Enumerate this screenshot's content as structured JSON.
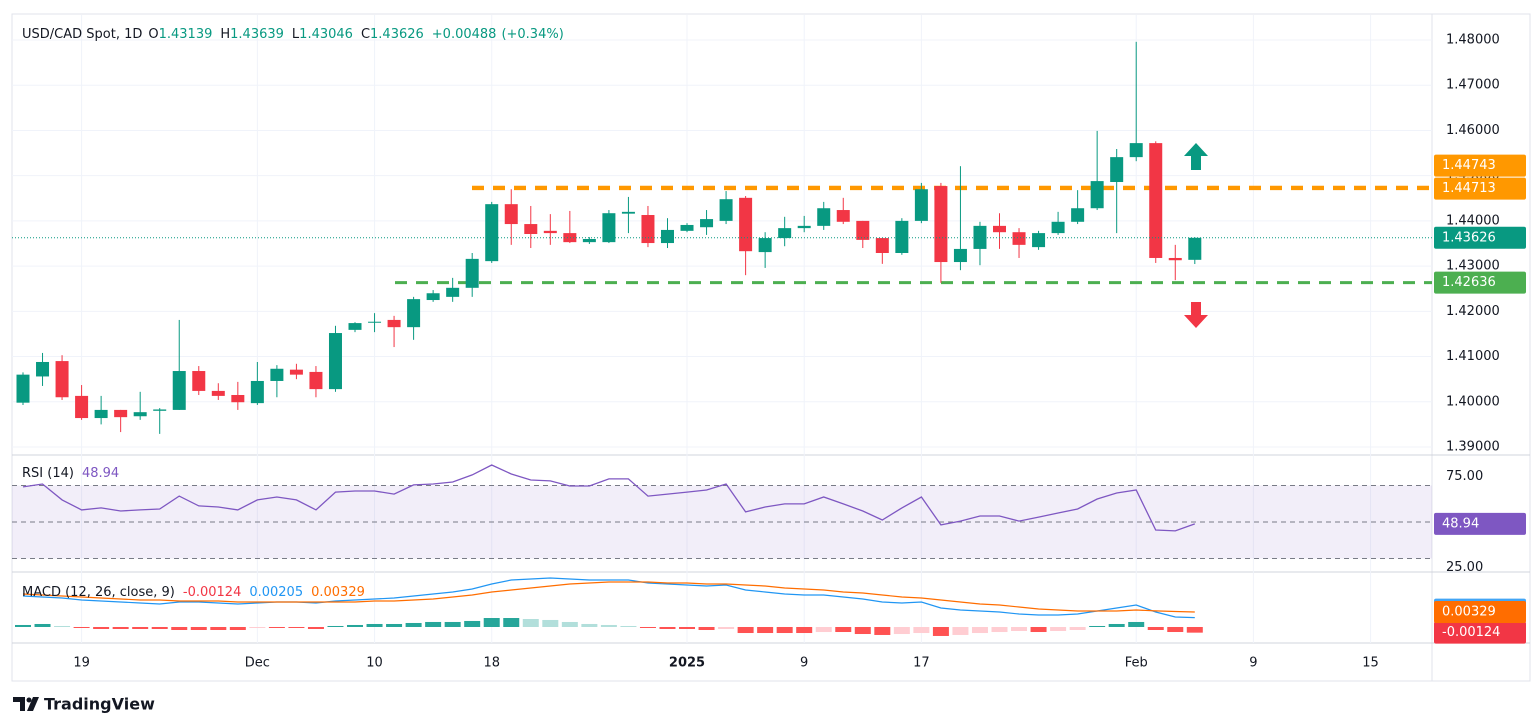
{
  "chart_data": {
    "type": "candlestick",
    "title": "USD/CAD Spot, 1D",
    "ohlc_letters": [
      "O",
      "H",
      "L",
      "C"
    ],
    "change": {
      "value": 0.00488,
      "label": "+0.00488"
    },
    "change_pct": {
      "value": 0.34,
      "label": "(+0.34%)"
    },
    "up_color": "#089981",
    "down_color": "#f23645",
    "ohlc": [
      [
        1.3998,
        1.4065,
        1.3993,
        1.406
      ],
      [
        1.4056,
        1.4108,
        1.4035,
        1.4088
      ],
      [
        1.409,
        1.4103,
        1.4004,
        1.401
      ],
      [
        1.4013,
        1.4037,
        1.396,
        1.3964
      ],
      [
        1.3964,
        1.4013,
        1.395,
        1.3982
      ],
      [
        1.3982,
        1.3982,
        1.3933,
        1.3966
      ],
      [
        1.3968,
        1.4022,
        1.396,
        1.3977
      ],
      [
        1.398,
        1.3986,
        1.3929,
        1.3983
      ],
      [
        1.3982,
        1.4181,
        1.3982,
        1.4068
      ],
      [
        1.4068,
        1.4079,
        1.4015,
        1.4024
      ],
      [
        1.4024,
        1.4041,
        1.4004,
        1.4013
      ],
      [
        1.4015,
        1.4044,
        1.3982,
        1.3999
      ],
      [
        1.3997,
        1.4088,
        1.3993,
        1.4046
      ],
      [
        1.4046,
        1.4081,
        1.401,
        1.4073
      ],
      [
        1.4071,
        1.4084,
        1.405,
        1.406
      ],
      [
        1.4066,
        1.4079,
        1.401,
        1.4028
      ],
      [
        1.4028,
        1.4168,
        1.4022,
        1.4152
      ],
      [
        1.4159,
        1.4176,
        1.4154,
        1.4174
      ],
      [
        1.4175,
        1.4196,
        1.4154,
        1.4177
      ],
      [
        1.4181,
        1.419,
        1.4121,
        1.4165
      ],
      [
        1.4165,
        1.4232,
        1.4137,
        1.4227
      ],
      [
        1.4225,
        1.4247,
        1.4221,
        1.424
      ],
      [
        1.4232,
        1.4274,
        1.4221,
        1.4252
      ],
      [
        1.4252,
        1.4329,
        1.4232,
        1.4316
      ],
      [
        1.4311,
        1.4442,
        1.4307,
        1.4437
      ],
      [
        1.4437,
        1.447,
        1.4347,
        1.4393
      ],
      [
        1.4393,
        1.4433,
        1.434,
        1.4371
      ],
      [
        1.4378,
        1.4415,
        1.4347,
        1.4373
      ],
      [
        1.4373,
        1.4422,
        1.4351,
        1.4353
      ],
      [
        1.4353,
        1.4364,
        1.4349,
        1.436
      ],
      [
        1.4353,
        1.4424,
        1.4351,
        1.4417
      ],
      [
        1.4416,
        1.4453,
        1.4373,
        1.442
      ],
      [
        1.4413,
        1.4433,
        1.4342,
        1.4351
      ],
      [
        1.4351,
        1.4406,
        1.434,
        1.438
      ],
      [
        1.4378,
        1.4395,
        1.4375,
        1.4391
      ],
      [
        1.4386,
        1.4424,
        1.4369,
        1.4404
      ],
      [
        1.44,
        1.4466,
        1.4393,
        1.4448
      ],
      [
        1.4451,
        1.4455,
        1.428,
        1.4333
      ],
      [
        1.4331,
        1.4375,
        1.4296,
        1.4362
      ],
      [
        1.4362,
        1.4409,
        1.4344,
        1.4384
      ],
      [
        1.4384,
        1.4411,
        1.4375,
        1.4389
      ],
      [
        1.4389,
        1.4442,
        1.438,
        1.4428
      ],
      [
        1.4424,
        1.4451,
        1.4393,
        1.4398
      ],
      [
        1.44,
        1.44,
        1.434,
        1.4358
      ],
      [
        1.4362,
        1.4362,
        1.4305,
        1.4329
      ],
      [
        1.4329,
        1.4406,
        1.4325,
        1.44
      ],
      [
        1.44,
        1.4484,
        1.4395,
        1.447
      ],
      [
        1.4477,
        1.4484,
        1.4263,
        1.4309
      ],
      [
        1.4309,
        1.4521,
        1.4291,
        1.4338
      ],
      [
        1.4338,
        1.4398,
        1.4302,
        1.4389
      ],
      [
        1.4389,
        1.4417,
        1.4338,
        1.4375
      ],
      [
        1.4375,
        1.4384,
        1.4318,
        1.4347
      ],
      [
        1.4342,
        1.4378,
        1.4336,
        1.4373
      ],
      [
        1.4373,
        1.442,
        1.4369,
        1.4398
      ],
      [
        1.4398,
        1.4468,
        1.4393,
        1.4428
      ],
      [
        1.4428,
        1.4599,
        1.4424,
        1.4488
      ],
      [
        1.4486,
        1.4559,
        1.4373,
        1.4541
      ],
      [
        1.4541,
        1.4796,
        1.4532,
        1.4572
      ],
      [
        1.4572,
        1.4576,
        1.4307,
        1.4318
      ],
      [
        1.4318,
        1.4347,
        1.4269,
        1.4313
      ],
      [
        1.43139,
        1.43639,
        1.43046,
        1.43626
      ]
    ],
    "ylim": [
      1.38823,
      1.48553
    ],
    "yticks": [
      {
        "value": 1.48,
        "label": "1.48000"
      },
      {
        "value": 1.47,
        "label": "1.47000"
      },
      {
        "value": 1.46,
        "label": "1.46000"
      },
      {
        "value": 1.45,
        "label": "1.45000"
      },
      {
        "value": 1.44,
        "label": "1.44000"
      },
      {
        "value": 1.43,
        "label": "1.43000"
      },
      {
        "value": 1.42,
        "label": "1.42000"
      },
      {
        "value": 1.41,
        "label": "1.41000"
      },
      {
        "value": 1.4,
        "label": "1.40000"
      },
      {
        "value": 1.39,
        "label": "1.39000"
      }
    ],
    "xticks": [
      {
        "value": 3,
        "label": "19"
      },
      {
        "value": 12,
        "label": "Dec"
      },
      {
        "value": 18,
        "label": "10"
      },
      {
        "value": 24,
        "label": "18"
      },
      {
        "value": 34,
        "label": "2025"
      },
      {
        "value": 40,
        "label": "9"
      },
      {
        "value": 46,
        "label": "17"
      },
      {
        "value": 57,
        "label": "Feb"
      },
      {
        "value": 63,
        "label": "9"
      },
      {
        "value": 69,
        "label": "15"
      }
    ],
    "grid": true,
    "levels": [
      {
        "value": 1.44743,
        "color": "#ff9800"
      },
      {
        "value": 1.44713,
        "color": "#ff9800"
      },
      {
        "value": 1.42636,
        "color": "#4caf50"
      }
    ],
    "rsi": {
      "name": "RSI (14)",
      "color": "#7e57c2",
      "values": [
        69.2,
        70.8,
        62.1,
        56.6,
        57.7,
        56.0,
        56.6,
        57.1,
        64.2,
        58.8,
        58.2,
        56.6,
        62.1,
        63.7,
        62.1,
        56.6,
        66.4,
        67.0,
        67.0,
        65.3,
        70.3,
        70.8,
        71.9,
        75.8,
        81.2,
        76.3,
        73.0,
        72.5,
        69.7,
        69.7,
        73.6,
        73.6,
        64.2,
        65.3,
        66.4,
        67.5,
        70.8,
        55.5,
        58.2,
        59.9,
        59.9,
        63.7,
        59.9,
        56.0,
        51.1,
        57.7,
        63.7,
        48.4,
        50.5,
        53.3,
        53.3,
        50.5,
        52.7,
        54.9,
        57.1,
        62.6,
        65.9,
        67.5,
        45.6,
        45.1,
        48.94
      ],
      "ylim": [
        22.6,
        86.7
      ],
      "yticks": [
        {
          "value": 75,
          "label": "75.00"
        },
        {
          "value": 25,
          "label": "25.00"
        }
      ],
      "levels": [
        70,
        50,
        30
      ]
    },
    "macd": {
      "name": "MACD (12, 26, close, 9)",
      "ylim": [
        -0.00351,
        0.01206
      ],
      "histogram": {
        "color": "#f23645",
        "values": [
          0.00044,
          0.00066,
          0.00022,
          -0.00022,
          -0.00044,
          -0.00044,
          -0.00044,
          -0.00044,
          -0.00066,
          -0.00066,
          -0.00066,
          -0.00066,
          -0.00022,
          -0.00022,
          -0.00022,
          -0.00044,
          0.00022,
          0.00044,
          0.00066,
          0.00066,
          0.00088,
          0.0011,
          0.0011,
          0.00132,
          0.00197,
          0.00197,
          0.00175,
          0.00154,
          0.0011,
          0.00066,
          0.00044,
          0.00022,
          -0.00022,
          -0.00044,
          -0.00044,
          -0.00066,
          -0.00044,
          -0.00132,
          -0.00132,
          -0.00132,
          -0.00132,
          -0.0011,
          -0.0011,
          -0.00154,
          -0.00175,
          -0.00154,
          -0.00132,
          -0.00197,
          -0.00175,
          -0.00132,
          -0.0011,
          -0.00088,
          -0.0011,
          -0.00088,
          -0.00066,
          0.00022,
          0.00066,
          0.0011,
          -0.00066,
          -0.0011,
          -0.00124
        ]
      },
      "macd_line": {
        "color": "#2196f3",
        "values": [
          0.0068,
          0.00658,
          0.00636,
          0.00592,
          0.0057,
          0.00548,
          0.00526,
          0.00504,
          0.00548,
          0.00548,
          0.00526,
          0.00504,
          0.00526,
          0.00548,
          0.00548,
          0.00526,
          0.0057,
          0.00592,
          0.00614,
          0.00636,
          0.0068,
          0.00724,
          0.00768,
          0.00833,
          0.00943,
          0.01031,
          0.01053,
          0.01075,
          0.01053,
          0.01031,
          0.01031,
          0.01031,
          0.00965,
          0.00943,
          0.00921,
          0.00899,
          0.00921,
          0.00811,
          0.00768,
          0.00724,
          0.00702,
          0.00702,
          0.00658,
          0.00614,
          0.00548,
          0.00526,
          0.00548,
          0.00417,
          0.00373,
          0.00351,
          0.00329,
          0.00285,
          0.00263,
          0.00263,
          0.00285,
          0.00351,
          0.00417,
          0.00482,
          0.00329,
          0.00219,
          0.00205
        ]
      },
      "signal_line": {
        "color": "#ff6d00",
        "values": [
          0.00724,
          0.00702,
          0.0068,
          0.00658,
          0.00636,
          0.00614,
          0.00592,
          0.00592,
          0.0057,
          0.0057,
          0.0057,
          0.00548,
          0.00548,
          0.00548,
          0.00548,
          0.00548,
          0.00548,
          0.00548,
          0.0057,
          0.0057,
          0.00592,
          0.00614,
          0.00658,
          0.00702,
          0.00768,
          0.00811,
          0.00855,
          0.00899,
          0.00943,
          0.00965,
          0.00987,
          0.00987,
          0.00987,
          0.00965,
          0.00965,
          0.00943,
          0.00943,
          0.00921,
          0.00899,
          0.00855,
          0.00833,
          0.00811,
          0.00768,
          0.00746,
          0.00702,
          0.00658,
          0.00636,
          0.00592,
          0.00548,
          0.00504,
          0.00482,
          0.00439,
          0.00395,
          0.00373,
          0.00351,
          0.00351,
          0.00351,
          0.00373,
          0.00352,
          0.0034,
          0.00329
        ]
      }
    },
    "brand": "TradingView"
  }
}
